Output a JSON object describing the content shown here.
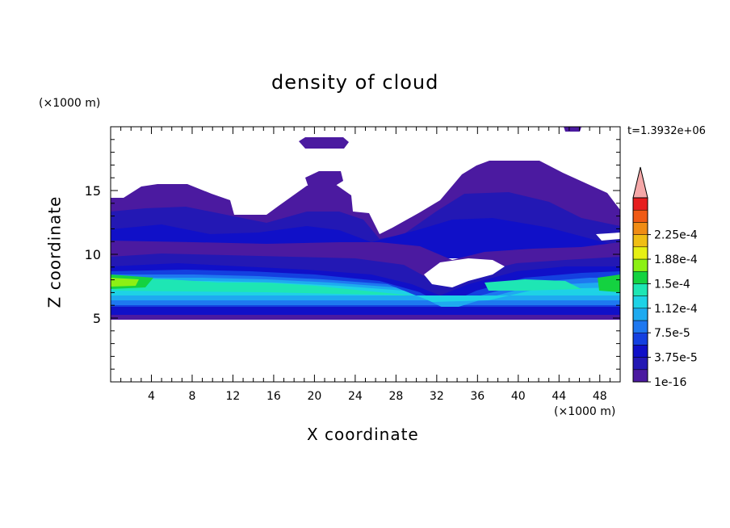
{
  "chart_data": {
    "type": "heatmap",
    "title": "density of cloud",
    "xlabel": "X coordinate",
    "ylabel": "Z coordinate",
    "x_unit_label": "(×1000 m)",
    "y_unit_label": "(×1000 m)",
    "time_label": "t=1.3932e+06",
    "xlim": [
      0,
      50
    ],
    "ylim": [
      0,
      20
    ],
    "x_ticks": [
      4,
      8,
      12,
      16,
      20,
      24,
      28,
      32,
      36,
      40,
      44,
      48
    ],
    "y_ticks": [
      5,
      10,
      15
    ],
    "colorbar": {
      "levels": [
        1e-16,
        1.875e-05,
        3.75e-05,
        5.625e-05,
        7.5e-05,
        9.375e-05,
        0.0001125,
        0.00013125,
        0.00015,
        0.00016875,
        0.0001875,
        0.00020625,
        0.000225,
        0.00024375
      ],
      "colors": [
        "#4b1aa0",
        "#2318b4",
        "#1010c8",
        "#1440e0",
        "#1e78f0",
        "#1eaaf0",
        "#1ed2e6",
        "#1ee6b4",
        "#14d240",
        "#8cf014",
        "#e6f014",
        "#f0be14",
        "#f08c14",
        "#f05a14",
        "#e61e1e"
      ],
      "over_color": "#f5a8a8",
      "labels": [
        "1e-16",
        "3.75e-5",
        "7.5e-5",
        "1.12e-4",
        "1.5e-4",
        "1.88e-4",
        "2.25e-4"
      ],
      "label_values": [
        1e-16,
        3.75e-05,
        7.5e-05,
        0.0001125,
        0.00015,
        0.0001875,
        0.000225
      ]
    },
    "field": {
      "description": "Cloud density field; main layer between z≈5 and z≈10 (×1000 m) with peak in the lower-left, thinner upper cloud decks and isolated patches aloft.",
      "layers": [
        {
          "x": [
            0,
            50
          ],
          "z": [
            5,
            6.2
          ],
          "level": 2
        },
        {
          "x": [
            0,
            50
          ],
          "z": [
            6.2,
            7.4
          ],
          "level": 4
        },
        {
          "x": [
            0,
            50
          ],
          "z": [
            7.4,
            8.4
          ],
          "level": 6
        },
        {
          "x": [
            0,
            5
          ],
          "z": [
            7.6,
            8.4
          ],
          "level": 9
        },
        {
          "x": [
            36,
            44
          ],
          "z": [
            7.2,
            8.0
          ],
          "level": 7
        },
        {
          "x": [
            47,
            50
          ],
          "z": [
            7.4,
            8.2
          ],
          "level": 8
        }
      ]
    }
  }
}
